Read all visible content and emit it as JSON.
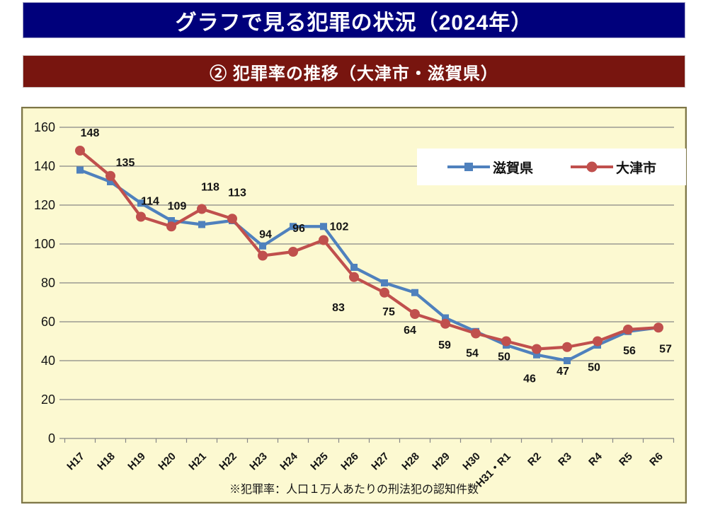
{
  "header": {
    "title": "グラフで見る犯罪の状況（2024年）"
  },
  "subheader": {
    "title": "② 犯罪率の推移（大津市・滋賀県）"
  },
  "footnote": "※犯罪率：人口１万人あたりの刑法犯の認知件数",
  "colors": {
    "header_bg": "#00007b",
    "subheader_bg": "#78150f",
    "chart_bg": "#fcf9d1",
    "chart_border": "#7d7647",
    "gridline": "#878787",
    "shiga_blue": "#4f81bd",
    "otsu_red": "#c0504d"
  },
  "legend": {
    "items": [
      {
        "label": "滋賀県",
        "color": "#4f81bd",
        "marker": "square"
      },
      {
        "label": "大津市",
        "color": "#c0504d",
        "marker": "circle"
      }
    ]
  },
  "chart_data": {
    "type": "line",
    "title": "② 犯罪率の推移（大津市・滋賀県）",
    "categories": [
      "H17",
      "H18",
      "H19",
      "H20",
      "H21",
      "H22",
      "H23",
      "H24",
      "H25",
      "H26",
      "H27",
      "H28",
      "H29",
      "H30",
      "H31・R1",
      "R2",
      "R3",
      "R4",
      "R5",
      "R6"
    ],
    "series": [
      {
        "name": "滋賀県",
        "color": "#4f81bd",
        "marker": "square",
        "labeled": false,
        "values": [
          138,
          132,
          121,
          112,
          110,
          112,
          99,
          109,
          109,
          88,
          80,
          75,
          62,
          55,
          48,
          43,
          40,
          48,
          55,
          57
        ]
      },
      {
        "name": "大津市",
        "color": "#c0504d",
        "marker": "circle",
        "labeled": true,
        "values": [
          148,
          135,
          114,
          109,
          118,
          113,
          94,
          96,
          102,
          83,
          75,
          64,
          59,
          54,
          50,
          46,
          47,
          50,
          56,
          57
        ]
      }
    ],
    "ylim": [
      0,
      160
    ],
    "ytick_step": 20,
    "grid": true,
    "legend_position": "inside-top-right",
    "note": "※犯罪率：人口１万人あたりの刑法犯の認知件数"
  }
}
